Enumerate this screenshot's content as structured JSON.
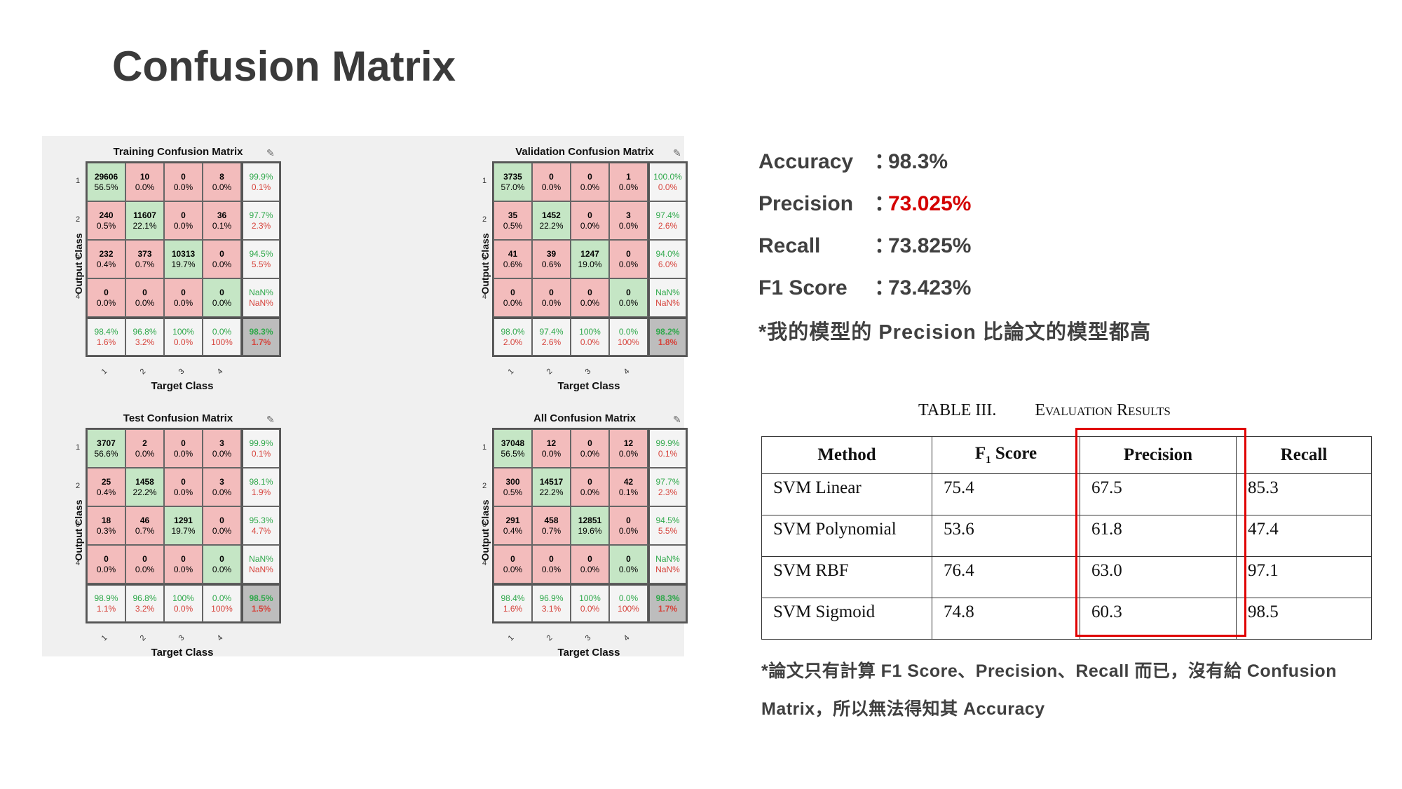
{
  "title": "Confusion Matrix",
  "matrices": [
    {
      "title": "Training Confusion Matrix",
      "ylabel": "Output Class",
      "xlabel": "Target Class",
      "row_labels": [
        "1",
        "2",
        "3",
        "4"
      ],
      "col_labels": [
        "1",
        "2",
        "3",
        "4"
      ],
      "cells": [
        [
          [
            "29606",
            "56.5%"
          ],
          [
            "10",
            "0.0%"
          ],
          [
            "0",
            "0.0%"
          ],
          [
            "8",
            "0.0%"
          ],
          [
            "99.9%",
            "0.1%"
          ]
        ],
        [
          [
            "240",
            "0.5%"
          ],
          [
            "11607",
            "22.1%"
          ],
          [
            "0",
            "0.0%"
          ],
          [
            "36",
            "0.1%"
          ],
          [
            "97.7%",
            "2.3%"
          ]
        ],
        [
          [
            "232",
            "0.4%"
          ],
          [
            "373",
            "0.7%"
          ],
          [
            "10313",
            "19.7%"
          ],
          [
            "0",
            "0.0%"
          ],
          [
            "94.5%",
            "5.5%"
          ]
        ],
        [
          [
            "0",
            "0.0%"
          ],
          [
            "0",
            "0.0%"
          ],
          [
            "0",
            "0.0%"
          ],
          [
            "0",
            "0.0%"
          ],
          [
            "NaN%",
            "NaN%"
          ]
        ],
        [
          [
            "98.4%",
            "1.6%"
          ],
          [
            "96.8%",
            "3.2%"
          ],
          [
            "100%",
            "0.0%"
          ],
          [
            "0.0%",
            "100%"
          ],
          [
            "98.3%",
            "1.7%"
          ]
        ]
      ]
    },
    {
      "title": "Validation Confusion Matrix",
      "ylabel": "Output Class",
      "xlabel": "Target Class",
      "row_labels": [
        "1",
        "2",
        "3",
        "4"
      ],
      "col_labels": [
        "1",
        "2",
        "3",
        "4"
      ],
      "cells": [
        [
          [
            "3735",
            "57.0%"
          ],
          [
            "0",
            "0.0%"
          ],
          [
            "0",
            "0.0%"
          ],
          [
            "1",
            "0.0%"
          ],
          [
            "100.0%",
            "0.0%"
          ]
        ],
        [
          [
            "35",
            "0.5%"
          ],
          [
            "1452",
            "22.2%"
          ],
          [
            "0",
            "0.0%"
          ],
          [
            "3",
            "0.0%"
          ],
          [
            "97.4%",
            "2.6%"
          ]
        ],
        [
          [
            "41",
            "0.6%"
          ],
          [
            "39",
            "0.6%"
          ],
          [
            "1247",
            "19.0%"
          ],
          [
            "0",
            "0.0%"
          ],
          [
            "94.0%",
            "6.0%"
          ]
        ],
        [
          [
            "0",
            "0.0%"
          ],
          [
            "0",
            "0.0%"
          ],
          [
            "0",
            "0.0%"
          ],
          [
            "0",
            "0.0%"
          ],
          [
            "NaN%",
            "NaN%"
          ]
        ],
        [
          [
            "98.0%",
            "2.0%"
          ],
          [
            "97.4%",
            "2.6%"
          ],
          [
            "100%",
            "0.0%"
          ],
          [
            "0.0%",
            "100%"
          ],
          [
            "98.2%",
            "1.8%"
          ]
        ]
      ]
    },
    {
      "title": "Test Confusion Matrix",
      "ylabel": "Output Class",
      "xlabel": "Target Class",
      "row_labels": [
        "1",
        "2",
        "3",
        "4"
      ],
      "col_labels": [
        "1",
        "2",
        "3",
        "4"
      ],
      "cells": [
        [
          [
            "3707",
            "56.6%"
          ],
          [
            "2",
            "0.0%"
          ],
          [
            "0",
            "0.0%"
          ],
          [
            "3",
            "0.0%"
          ],
          [
            "99.9%",
            "0.1%"
          ]
        ],
        [
          [
            "25",
            "0.4%"
          ],
          [
            "1458",
            "22.2%"
          ],
          [
            "0",
            "0.0%"
          ],
          [
            "3",
            "0.0%"
          ],
          [
            "98.1%",
            "1.9%"
          ]
        ],
        [
          [
            "18",
            "0.3%"
          ],
          [
            "46",
            "0.7%"
          ],
          [
            "1291",
            "19.7%"
          ],
          [
            "0",
            "0.0%"
          ],
          [
            "95.3%",
            "4.7%"
          ]
        ],
        [
          [
            "0",
            "0.0%"
          ],
          [
            "0",
            "0.0%"
          ],
          [
            "0",
            "0.0%"
          ],
          [
            "0",
            "0.0%"
          ],
          [
            "NaN%",
            "NaN%"
          ]
        ],
        [
          [
            "98.9%",
            "1.1%"
          ],
          [
            "96.8%",
            "3.2%"
          ],
          [
            "100%",
            "0.0%"
          ],
          [
            "0.0%",
            "100%"
          ],
          [
            "98.5%",
            "1.5%"
          ]
        ]
      ]
    },
    {
      "title": "All Confusion Matrix",
      "ylabel": "Output Class",
      "xlabel": "Target Class",
      "row_labels": [
        "1",
        "2",
        "3",
        "4"
      ],
      "col_labels": [
        "1",
        "2",
        "3",
        "4"
      ],
      "cells": [
        [
          [
            "37048",
            "56.5%"
          ],
          [
            "12",
            "0.0%"
          ],
          [
            "0",
            "0.0%"
          ],
          [
            "12",
            "0.0%"
          ],
          [
            "99.9%",
            "0.1%"
          ]
        ],
        [
          [
            "300",
            "0.5%"
          ],
          [
            "14517",
            "22.2%"
          ],
          [
            "0",
            "0.0%"
          ],
          [
            "42",
            "0.1%"
          ],
          [
            "97.7%",
            "2.3%"
          ]
        ],
        [
          [
            "291",
            "0.4%"
          ],
          [
            "458",
            "0.7%"
          ],
          [
            "12851",
            "19.6%"
          ],
          [
            "0",
            "0.0%"
          ],
          [
            "94.5%",
            "5.5%"
          ]
        ],
        [
          [
            "0",
            "0.0%"
          ],
          [
            "0",
            "0.0%"
          ],
          [
            "0",
            "0.0%"
          ],
          [
            "0",
            "0.0%"
          ],
          [
            "NaN%",
            "NaN%"
          ]
        ],
        [
          [
            "98.4%",
            "1.6%"
          ],
          [
            "96.9%",
            "3.1%"
          ],
          [
            "100%",
            "0.0%"
          ],
          [
            "0.0%",
            "100%"
          ],
          [
            "98.3%",
            "1.7%"
          ]
        ]
      ]
    }
  ],
  "metrics": {
    "accuracy": {
      "label": "Accuracy",
      "value": "98.3%"
    },
    "precision": {
      "label": "Precision",
      "value": "73.025%"
    },
    "recall": {
      "label": "Recall",
      "value": "73.825%"
    },
    "f1": {
      "label": "F1 Score",
      "value": "73.423%"
    },
    "colon": "："
  },
  "note_model": "*我的模型的 Precision 比論文的模型都高",
  "table": {
    "caption_num": "TABLE III.",
    "caption_text": "Evaluation Results",
    "headers": [
      "Method",
      "F",
      "1",
      " Score",
      "Precision",
      "Recall"
    ],
    "rows": [
      [
        "SVM Linear",
        "75.4",
        "67.5",
        "85.3"
      ],
      [
        "SVM Polynomial",
        "53.6",
        "61.8",
        "47.4"
      ],
      [
        "SVM RBF",
        "76.4",
        "63.0",
        "97.1"
      ],
      [
        "SVM Sigmoid",
        "74.8",
        "60.3",
        "98.5"
      ]
    ]
  },
  "note_paper": "*論文只有計算 F1 Score、Precision、Recall 而已，沒有給 Confusion Matrix，所以無法得知其 Accuracy",
  "colors": {
    "highlight_red": "#d40000",
    "cell_green": "#c5e6c5",
    "cell_red": "#f3bcbc"
  }
}
